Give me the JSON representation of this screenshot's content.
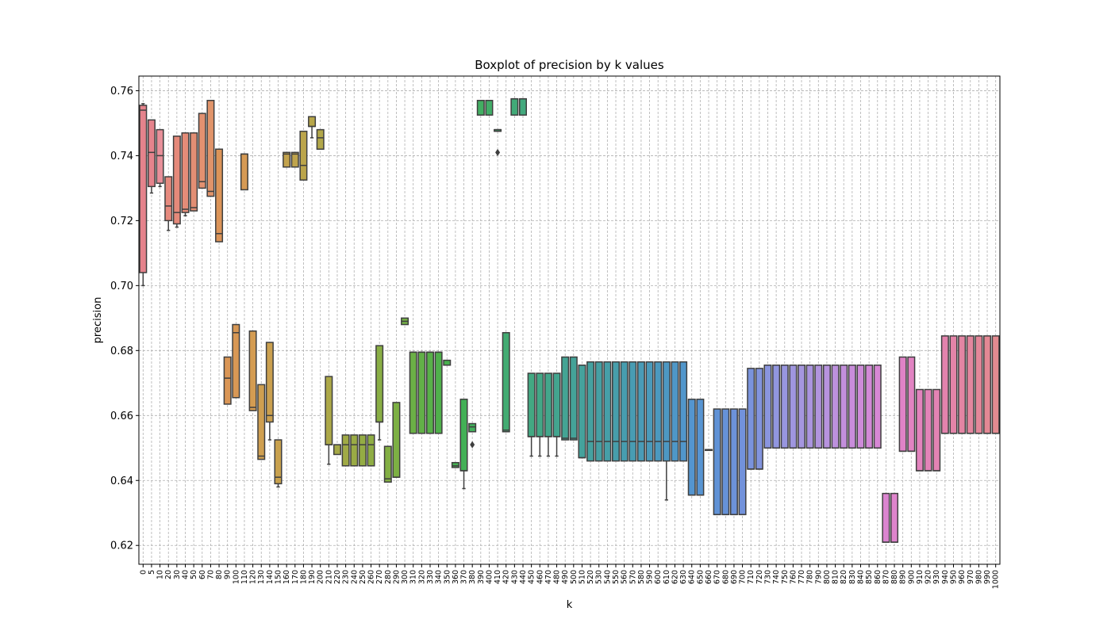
{
  "chart_data": {
    "type": "boxplot",
    "title": "Boxplot of precision by k values",
    "xlabel": "k",
    "ylabel": "precision",
    "ylim": [
      0.6142,
      0.7645
    ],
    "yticks": [
      0.62,
      0.64,
      0.66,
      0.68,
      0.7,
      0.72,
      0.74,
      0.76
    ],
    "grid": true,
    "categories": [
      "0",
      "5",
      "10",
      "20",
      "30",
      "40",
      "50",
      "60",
      "70",
      "80",
      "90",
      "100",
      "110",
      "120",
      "130",
      "140",
      "150",
      "160",
      "170",
      "180",
      "190",
      "200",
      "210",
      "220",
      "230",
      "240",
      "250",
      "260",
      "270",
      "280",
      "290",
      "300",
      "310",
      "320",
      "330",
      "340",
      "350",
      "360",
      "370",
      "380",
      "390",
      "400",
      "410",
      "420",
      "430",
      "440",
      "450",
      "460",
      "470",
      "480",
      "490",
      "500",
      "510",
      "520",
      "530",
      "540",
      "550",
      "560",
      "570",
      "580",
      "590",
      "600",
      "610",
      "620",
      "630",
      "640",
      "650",
      "660",
      "670",
      "680",
      "690",
      "700",
      "710",
      "720",
      "730",
      "740",
      "750",
      "760",
      "770",
      "780",
      "790",
      "800",
      "810",
      "820",
      "830",
      "840",
      "850",
      "860",
      "870",
      "880",
      "890",
      "900",
      "910",
      "920",
      "930",
      "940",
      "950",
      "960",
      "970",
      "980",
      "990",
      "1000"
    ],
    "boxes": [
      {
        "k": "0",
        "q1": 0.704,
        "med": 0.754,
        "q3": 0.7555,
        "wlo": 0.7,
        "whi": 0.756,
        "color": "#e5838c"
      },
      {
        "k": "5",
        "q1": 0.7305,
        "med": 0.741,
        "q3": 0.751,
        "wlo": 0.7285,
        "whi": 0.751,
        "color": "#e5838c"
      },
      {
        "k": "10",
        "q1": 0.7315,
        "med": 0.74,
        "q3": 0.748,
        "wlo": 0.7305,
        "whi": 0.748,
        "color": "#e8909a"
      },
      {
        "k": "20",
        "q1": 0.72,
        "med": 0.7245,
        "q3": 0.7335,
        "wlo": 0.717,
        "whi": 0.7335,
        "color": "#e68a7e"
      },
      {
        "k": "30",
        "q1": 0.719,
        "med": 0.7225,
        "q3": 0.746,
        "wlo": 0.718,
        "whi": 0.746,
        "color": "#e5897a"
      },
      {
        "k": "40",
        "q1": 0.7225,
        "med": 0.7235,
        "q3": 0.747,
        "wlo": 0.7215,
        "whi": 0.747,
        "color": "#e48c78"
      },
      {
        "k": "50",
        "q1": 0.723,
        "med": 0.724,
        "q3": 0.747,
        "wlo": 0.723,
        "whi": 0.747,
        "color": "#e38e74"
      },
      {
        "k": "60",
        "q1": 0.73,
        "med": 0.732,
        "q3": 0.753,
        "wlo": 0.73,
        "whi": 0.753,
        "color": "#e39170"
      },
      {
        "k": "70",
        "q1": 0.7275,
        "med": 0.729,
        "q3": 0.757,
        "wlo": 0.7275,
        "whi": 0.757,
        "color": "#e0946a"
      },
      {
        "k": "80",
        "q1": 0.7135,
        "med": 0.716,
        "q3": 0.742,
        "wlo": 0.7135,
        "whi": 0.742,
        "color": "#dc9458"
      },
      {
        "k": "90",
        "q1": 0.6635,
        "med": 0.6715,
        "q3": 0.678,
        "wlo": 0.6635,
        "whi": 0.678,
        "color": "#da9656"
      },
      {
        "k": "100",
        "q1": 0.6655,
        "med": 0.6855,
        "q3": 0.688,
        "wlo": 0.6655,
        "whi": 0.688,
        "color": "#d89855"
      },
      {
        "k": "110",
        "q1": 0.7295,
        "med": 0.7405,
        "q3": 0.7405,
        "wlo": 0.7295,
        "whi": 0.7405,
        "color": "#d69a54"
      },
      {
        "k": "120",
        "q1": 0.6615,
        "med": 0.6625,
        "q3": 0.686,
        "wlo": 0.6615,
        "whi": 0.686,
        "color": "#d49c52"
      },
      {
        "k": "130",
        "q1": 0.6465,
        "med": 0.6475,
        "q3": 0.6695,
        "wlo": 0.6465,
        "whi": 0.6695,
        "color": "#cf9f50"
      },
      {
        "k": "140",
        "q1": 0.658,
        "med": 0.66,
        "q3": 0.6825,
        "wlo": 0.6525,
        "whi": 0.6825,
        "color": "#cba04f"
      },
      {
        "k": "150",
        "q1": 0.639,
        "med": 0.641,
        "q3": 0.6525,
        "wlo": 0.638,
        "whi": 0.6525,
        "color": "#c8a14e"
      },
      {
        "k": "160",
        "q1": 0.7365,
        "med": 0.7405,
        "q3": 0.741,
        "wlo": 0.7365,
        "whi": 0.741,
        "color": "#c3a34d"
      },
      {
        "k": "170",
        "q1": 0.7365,
        "med": 0.7405,
        "q3": 0.741,
        "wlo": 0.7365,
        "whi": 0.741,
        "color": "#bfa44c"
      },
      {
        "k": "180",
        "q1": 0.7325,
        "med": 0.737,
        "q3": 0.7475,
        "wlo": 0.7325,
        "whi": 0.7475,
        "color": "#bba54b"
      },
      {
        "k": "190",
        "q1": 0.749,
        "med": 0.749,
        "q3": 0.752,
        "wlo": 0.7455,
        "whi": 0.752,
        "color": "#b7a64a"
      },
      {
        "k": "200",
        "q1": 0.742,
        "med": 0.7455,
        "q3": 0.748,
        "wlo": 0.742,
        "whi": 0.748,
        "color": "#b2a749"
      },
      {
        "k": "210",
        "q1": 0.651,
        "med": 0.651,
        "q3": 0.672,
        "wlo": 0.645,
        "whi": 0.672,
        "color": "#aca848"
      },
      {
        "k": "220",
        "q1": 0.648,
        "med": 0.651,
        "q3": 0.651,
        "wlo": 0.648,
        "whi": 0.651,
        "color": "#a6a947"
      },
      {
        "k": "230",
        "q1": 0.6445,
        "med": 0.651,
        "q3": 0.654,
        "wlo": 0.6445,
        "whi": 0.654,
        "color": "#a0aa46"
      },
      {
        "k": "240",
        "q1": 0.6445,
        "med": 0.651,
        "q3": 0.654,
        "wlo": 0.6445,
        "whi": 0.654,
        "color": "#9aab45"
      },
      {
        "k": "250",
        "q1": 0.6445,
        "med": 0.651,
        "q3": 0.654,
        "wlo": 0.6445,
        "whi": 0.654,
        "color": "#94ac44"
      },
      {
        "k": "260",
        "q1": 0.6445,
        "med": 0.651,
        "q3": 0.654,
        "wlo": 0.6445,
        "whi": 0.654,
        "color": "#8fad44"
      },
      {
        "k": "270",
        "q1": 0.658,
        "med": 0.658,
        "q3": 0.6815,
        "wlo": 0.6525,
        "whi": 0.6815,
        "color": "#89ae44"
      },
      {
        "k": "280",
        "q1": 0.6395,
        "med": 0.6405,
        "q3": 0.6505,
        "wlo": 0.6395,
        "whi": 0.6505,
        "color": "#83af44"
      },
      {
        "k": "290",
        "q1": 0.641,
        "med": 0.641,
        "q3": 0.664,
        "wlo": 0.641,
        "whi": 0.664,
        "color": "#7db044"
      },
      {
        "k": "300",
        "q1": 0.688,
        "med": 0.689,
        "q3": 0.69,
        "wlo": 0.688,
        "whi": 0.69,
        "color": "#74b045"
      },
      {
        "k": "310",
        "q1": 0.6545,
        "med": 0.6795,
        "q3": 0.6795,
        "wlo": 0.6545,
        "whi": 0.6795,
        "color": "#6bb046"
      },
      {
        "k": "320",
        "q1": 0.6545,
        "med": 0.6795,
        "q3": 0.6795,
        "wlo": 0.6545,
        "whi": 0.6795,
        "color": "#62b047"
      },
      {
        "k": "330",
        "q1": 0.6545,
        "med": 0.6795,
        "q3": 0.6795,
        "wlo": 0.6545,
        "whi": 0.6795,
        "color": "#58b049"
      },
      {
        "k": "340",
        "q1": 0.6545,
        "med": 0.6795,
        "q3": 0.6795,
        "wlo": 0.6545,
        "whi": 0.6795,
        "color": "#4fb04b"
      },
      {
        "k": "350",
        "q1": 0.6755,
        "med": 0.6755,
        "q3": 0.677,
        "wlo": 0.6755,
        "whi": 0.677,
        "color": "#48b04e"
      },
      {
        "k": "360",
        "q1": 0.644,
        "med": 0.6445,
        "q3": 0.6455,
        "wlo": 0.644,
        "whi": 0.6455,
        "color": "#45b052"
      },
      {
        "k": "370",
        "q1": 0.643,
        "med": 0.643,
        "q3": 0.665,
        "wlo": 0.6375,
        "whi": 0.665,
        "color": "#43b056"
      },
      {
        "k": "380",
        "q1": 0.655,
        "med": 0.6565,
        "q3": 0.6575,
        "wlo": 0.655,
        "whi": 0.6575,
        "color": "#42b05b",
        "fliers": [
          0.651
        ]
      },
      {
        "k": "390",
        "q1": 0.7525,
        "med": 0.757,
        "q3": 0.757,
        "wlo": 0.7525,
        "whi": 0.757,
        "color": "#42ae62"
      },
      {
        "k": "400",
        "q1": 0.7525,
        "med": 0.757,
        "q3": 0.757,
        "wlo": 0.7525,
        "whi": 0.757,
        "color": "#42ad68"
      },
      {
        "k": "410",
        "q1": 0.7475,
        "med": 0.748,
        "q3": 0.748,
        "wlo": 0.7475,
        "whi": 0.748,
        "color": "#42ac6d",
        "fliers": [
          0.741
        ]
      },
      {
        "k": "420",
        "q1": 0.655,
        "med": 0.6555,
        "q3": 0.6855,
        "wlo": 0.655,
        "whi": 0.6855,
        "color": "#42ab72"
      },
      {
        "k": "430",
        "q1": 0.7525,
        "med": 0.7575,
        "q3": 0.7575,
        "wlo": 0.7525,
        "whi": 0.7575,
        "color": "#42aa78"
      },
      {
        "k": "440",
        "q1": 0.7525,
        "med": 0.7575,
        "q3": 0.7575,
        "wlo": 0.7525,
        "whi": 0.7575,
        "color": "#42a97d"
      },
      {
        "k": "450",
        "q1": 0.6535,
        "med": 0.6535,
        "q3": 0.673,
        "wlo": 0.6475,
        "whi": 0.673,
        "color": "#43a882"
      },
      {
        "k": "460",
        "q1": 0.6535,
        "med": 0.6535,
        "q3": 0.673,
        "wlo": 0.6475,
        "whi": 0.673,
        "color": "#43a786"
      },
      {
        "k": "470",
        "q1": 0.6535,
        "med": 0.6535,
        "q3": 0.673,
        "wlo": 0.6475,
        "whi": 0.673,
        "color": "#43a68b"
      },
      {
        "k": "480",
        "q1": 0.6535,
        "med": 0.6535,
        "q3": 0.673,
        "wlo": 0.6475,
        "whi": 0.673,
        "color": "#43a58f"
      },
      {
        "k": "490",
        "q1": 0.6525,
        "med": 0.653,
        "q3": 0.678,
        "wlo": 0.6525,
        "whi": 0.678,
        "color": "#44a494"
      },
      {
        "k": "500",
        "q1": 0.6525,
        "med": 0.653,
        "q3": 0.678,
        "wlo": 0.6525,
        "whi": 0.678,
        "color": "#44a398"
      },
      {
        "k": "510",
        "q1": 0.647,
        "med": 0.647,
        "q3": 0.6755,
        "wlo": 0.647,
        "whi": 0.6755,
        "color": "#45a29c"
      },
      {
        "k": "520",
        "q1": 0.646,
        "med": 0.652,
        "q3": 0.6765,
        "wlo": 0.646,
        "whi": 0.6765,
        "color": "#45a1a0"
      },
      {
        "k": "530",
        "q1": 0.646,
        "med": 0.652,
        "q3": 0.6765,
        "wlo": 0.646,
        "whi": 0.6765,
        "color": "#46a0a4"
      },
      {
        "k": "540",
        "q1": 0.646,
        "med": 0.652,
        "q3": 0.6765,
        "wlo": 0.646,
        "whi": 0.6765,
        "color": "#469fa8"
      },
      {
        "k": "550",
        "q1": 0.646,
        "med": 0.652,
        "q3": 0.6765,
        "wlo": 0.646,
        "whi": 0.6765,
        "color": "#479eab"
      },
      {
        "k": "560",
        "q1": 0.646,
        "med": 0.652,
        "q3": 0.6765,
        "wlo": 0.646,
        "whi": 0.6765,
        "color": "#479daf"
      },
      {
        "k": "570",
        "q1": 0.646,
        "med": 0.652,
        "q3": 0.6765,
        "wlo": 0.646,
        "whi": 0.6765,
        "color": "#489cb3"
      },
      {
        "k": "580",
        "q1": 0.646,
        "med": 0.652,
        "q3": 0.6765,
        "wlo": 0.646,
        "whi": 0.6765,
        "color": "#499bb7"
      },
      {
        "k": "590",
        "q1": 0.646,
        "med": 0.652,
        "q3": 0.6765,
        "wlo": 0.646,
        "whi": 0.6765,
        "color": "#4a9abb"
      },
      {
        "k": "600",
        "q1": 0.646,
        "med": 0.652,
        "q3": 0.6765,
        "wlo": 0.646,
        "whi": 0.6765,
        "color": "#4b99bf"
      },
      {
        "k": "610",
        "q1": 0.646,
        "med": 0.652,
        "q3": 0.6765,
        "wlo": 0.634,
        "whi": 0.6765,
        "color": "#4d98c3"
      },
      {
        "k": "620",
        "q1": 0.646,
        "med": 0.652,
        "q3": 0.6765,
        "wlo": 0.646,
        "whi": 0.6765,
        "color": "#4f97c7"
      },
      {
        "k": "630",
        "q1": 0.646,
        "med": 0.652,
        "q3": 0.6765,
        "wlo": 0.646,
        "whi": 0.6765,
        "color": "#5196cb"
      },
      {
        "k": "640",
        "q1": 0.6355,
        "med": 0.6355,
        "q3": 0.665,
        "wlo": 0.6355,
        "whi": 0.665,
        "color": "#5495cf"
      },
      {
        "k": "650",
        "q1": 0.6355,
        "med": 0.6355,
        "q3": 0.665,
        "wlo": 0.6355,
        "whi": 0.665,
        "color": "#5794d2"
      },
      {
        "k": "660",
        "q1": 0.6495,
        "med": 0.6495,
        "q3": 0.6495,
        "wlo": 0.6495,
        "whi": 0.6495,
        "color": "#5a93d4"
      },
      {
        "k": "670",
        "q1": 0.6295,
        "med": 0.6295,
        "q3": 0.662,
        "wlo": 0.6295,
        "whi": 0.662,
        "color": "#6092d6"
      },
      {
        "k": "680",
        "q1": 0.6295,
        "med": 0.6295,
        "q3": 0.662,
        "wlo": 0.6295,
        "whi": 0.662,
        "color": "#6692d8"
      },
      {
        "k": "690",
        "q1": 0.6295,
        "med": 0.6295,
        "q3": 0.662,
        "wlo": 0.6295,
        "whi": 0.662,
        "color": "#6c92da"
      },
      {
        "k": "700",
        "q1": 0.6295,
        "med": 0.6295,
        "q3": 0.662,
        "wlo": 0.6295,
        "whi": 0.662,
        "color": "#7292db"
      },
      {
        "k": "710",
        "q1": 0.6435,
        "med": 0.6435,
        "q3": 0.6745,
        "wlo": 0.6435,
        "whi": 0.6745,
        "color": "#7a93dc"
      },
      {
        "k": "720",
        "q1": 0.6435,
        "med": 0.6435,
        "q3": 0.6745,
        "wlo": 0.6435,
        "whi": 0.6745,
        "color": "#8294dd"
      },
      {
        "k": "730",
        "q1": 0.65,
        "med": 0.65,
        "q3": 0.6755,
        "wlo": 0.65,
        "whi": 0.6755,
        "color": "#8a95de"
      },
      {
        "k": "740",
        "q1": 0.65,
        "med": 0.65,
        "q3": 0.6755,
        "wlo": 0.65,
        "whi": 0.6755,
        "color": "#9196df"
      },
      {
        "k": "750",
        "q1": 0.65,
        "med": 0.65,
        "q3": 0.6755,
        "wlo": 0.65,
        "whi": 0.6755,
        "color": "#9896df"
      },
      {
        "k": "760",
        "q1": 0.65,
        "med": 0.65,
        "q3": 0.6755,
        "wlo": 0.65,
        "whi": 0.6755,
        "color": "#9f96df"
      },
      {
        "k": "770",
        "q1": 0.65,
        "med": 0.65,
        "q3": 0.6755,
        "wlo": 0.65,
        "whi": 0.6755,
        "color": "#a596df"
      },
      {
        "k": "780",
        "q1": 0.65,
        "med": 0.65,
        "q3": 0.6755,
        "wlo": 0.65,
        "whi": 0.6755,
        "color": "#ab95df"
      },
      {
        "k": "790",
        "q1": 0.65,
        "med": 0.65,
        "q3": 0.6755,
        "wlo": 0.65,
        "whi": 0.6755,
        "color": "#b194de"
      },
      {
        "k": "800",
        "q1": 0.65,
        "med": 0.65,
        "q3": 0.6755,
        "wlo": 0.65,
        "whi": 0.6755,
        "color": "#b793de"
      },
      {
        "k": "810",
        "q1": 0.65,
        "med": 0.65,
        "q3": 0.6755,
        "wlo": 0.65,
        "whi": 0.6755,
        "color": "#bd91dd"
      },
      {
        "k": "820",
        "q1": 0.65,
        "med": 0.65,
        "q3": 0.6755,
        "wlo": 0.65,
        "whi": 0.6755,
        "color": "#c38fdc"
      },
      {
        "k": "830",
        "q1": 0.65,
        "med": 0.65,
        "q3": 0.6755,
        "wlo": 0.65,
        "whi": 0.6755,
        "color": "#c98ddb"
      },
      {
        "k": "840",
        "q1": 0.65,
        "med": 0.65,
        "q3": 0.6755,
        "wlo": 0.65,
        "whi": 0.6755,
        "color": "#ce8bd9"
      },
      {
        "k": "850",
        "q1": 0.65,
        "med": 0.65,
        "q3": 0.6755,
        "wlo": 0.65,
        "whi": 0.6755,
        "color": "#d389d7"
      },
      {
        "k": "860",
        "q1": 0.65,
        "med": 0.65,
        "q3": 0.6755,
        "wlo": 0.65,
        "whi": 0.6755,
        "color": "#d787d4"
      },
      {
        "k": "870",
        "q1": 0.621,
        "med": 0.621,
        "q3": 0.636,
        "wlo": 0.621,
        "whi": 0.636,
        "color": "#db85d0"
      },
      {
        "k": "880",
        "q1": 0.621,
        "med": 0.621,
        "q3": 0.636,
        "wlo": 0.621,
        "whi": 0.636,
        "color": "#df84cc"
      },
      {
        "k": "890",
        "q1": 0.649,
        "med": 0.649,
        "q3": 0.678,
        "wlo": 0.649,
        "whi": 0.678,
        "color": "#e083c7"
      },
      {
        "k": "900",
        "q1": 0.649,
        "med": 0.649,
        "q3": 0.678,
        "wlo": 0.649,
        "whi": 0.678,
        "color": "#e183c2"
      },
      {
        "k": "910",
        "q1": 0.643,
        "med": 0.643,
        "q3": 0.668,
        "wlo": 0.643,
        "whi": 0.668,
        "color": "#e283bd"
      },
      {
        "k": "920",
        "q1": 0.643,
        "med": 0.643,
        "q3": 0.668,
        "wlo": 0.643,
        "whi": 0.668,
        "color": "#e283b8"
      },
      {
        "k": "930",
        "q1": 0.643,
        "med": 0.643,
        "q3": 0.668,
        "wlo": 0.643,
        "whi": 0.668,
        "color": "#e383b3"
      },
      {
        "k": "940",
        "q1": 0.6545,
        "med": 0.6545,
        "q3": 0.6845,
        "wlo": 0.6545,
        "whi": 0.6845,
        "color": "#e383ad"
      },
      {
        "k": "950",
        "q1": 0.6545,
        "med": 0.6545,
        "q3": 0.6845,
        "wlo": 0.6545,
        "whi": 0.6845,
        "color": "#e384a8"
      },
      {
        "k": "960",
        "q1": 0.6545,
        "med": 0.6545,
        "q3": 0.6845,
        "wlo": 0.6545,
        "whi": 0.6845,
        "color": "#e385a3"
      },
      {
        "k": "970",
        "q1": 0.6545,
        "med": 0.6545,
        "q3": 0.6845,
        "wlo": 0.6545,
        "whi": 0.6845,
        "color": "#e3869e"
      },
      {
        "k": "980",
        "q1": 0.6545,
        "med": 0.6545,
        "q3": 0.6845,
        "wlo": 0.6545,
        "whi": 0.6845,
        "color": "#e38799"
      },
      {
        "k": "990",
        "q1": 0.6545,
        "med": 0.6545,
        "q3": 0.6845,
        "wlo": 0.6545,
        "whi": 0.6845,
        "color": "#e38894"
      },
      {
        "k": "1000",
        "q1": 0.6545,
        "med": 0.6545,
        "q3": 0.6845,
        "wlo": 0.6545,
        "whi": 0.6845,
        "color": "#e38a90"
      }
    ]
  }
}
